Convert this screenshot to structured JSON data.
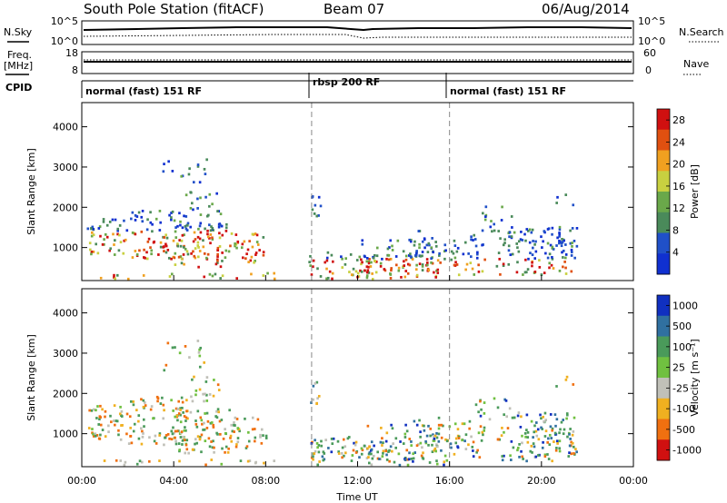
{
  "header": {
    "station": "South Pole Station (fitACF)",
    "beam": "Beam 07",
    "date": "06/Aug/2014"
  },
  "top_panels": {
    "nsky_label": "N.Sky",
    "nsearch_label": "N.Search",
    "freq_label_line1": "Freq.",
    "freq_label_line2": "[MHz]",
    "nave_label": "Nave",
    "cpid_label": "CPID",
    "nsky_ticks": [
      "10^5",
      "10^0"
    ],
    "nsearch_ticks": [
      "10^5",
      "10^0"
    ],
    "freq_ticks": [
      "18",
      "8"
    ],
    "nave_ticks": [
      "60",
      "0"
    ],
    "cpid_modes": [
      {
        "label": "normal (fast) 151 RF",
        "start_hr": 0
      },
      {
        "label": "rbsp 200 RF",
        "start_hr": 10
      },
      {
        "label": "normal (fast) 151 RF",
        "start_hr": 16
      }
    ]
  },
  "chart_data": [
    {
      "type": "heatmap",
      "name": "power",
      "ylabel": "Slant Range [km]",
      "xlim": [
        0,
        24
      ],
      "ylim": [
        180,
        4600
      ],
      "yticks": [
        1000,
        2000,
        3000,
        4000
      ],
      "colorbar_label": "Power [dB]",
      "colorbar_ticks": [
        4,
        8,
        12,
        16,
        20,
        24,
        28
      ],
      "colorbar_range": [
        0,
        30
      ],
      "colors": [
        "#1030d0",
        "#2050c8",
        "#4a8a5a",
        "#6aa84a",
        "#c8d040",
        "#f0a020",
        "#e05010",
        "#d01010"
      ]
    },
    {
      "type": "heatmap",
      "name": "velocity",
      "ylabel": "Slant Range [km]",
      "xlabel": "Time UT",
      "xlim": [
        0,
        24
      ],
      "ylim": [
        180,
        4600
      ],
      "yticks": [
        1000,
        2000,
        3000,
        4000
      ],
      "xticks": [
        "00:00",
        "04:00",
        "08:00",
        "12:00",
        "16:00",
        "20:00",
        "00:00"
      ],
      "colorbar_label": "Velocity [m s⁻¹]",
      "colorbar_ticks": [
        "1000",
        "500",
        "100",
        "25",
        "-25",
        "-100",
        "-500",
        "-1000"
      ],
      "colors": [
        "#1030c0",
        "#3070a0",
        "#4a9a5a",
        "#70c040",
        "#c0c0b8",
        "#f0b020",
        "#f07010",
        "#d01010"
      ]
    }
  ]
}
